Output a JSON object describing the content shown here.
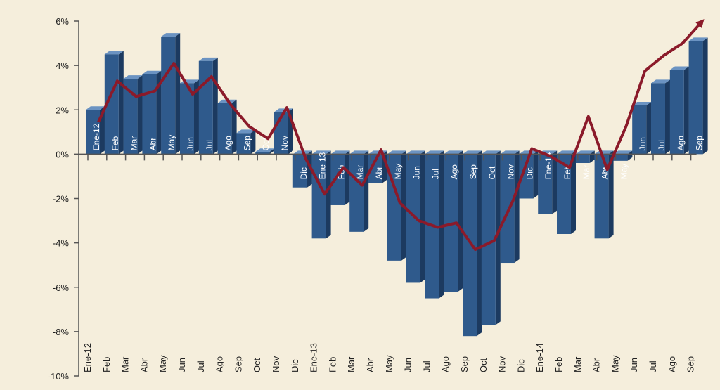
{
  "chart_data": {
    "type": "bar",
    "categories": [
      "Ene-12",
      "Feb",
      "Mar",
      "Abr",
      "May",
      "Jun",
      "Jul",
      "Ago",
      "Sep",
      "Oct",
      "Nov",
      "Dic",
      "Ene-13",
      "Feb",
      "Mar",
      "Abr",
      "May",
      "Jun",
      "Jul",
      "Ago",
      "Sep",
      "Oct",
      "Nov",
      "Dic",
      "Ene-14",
      "Feb",
      "Mar",
      "Abr",
      "May",
      "Jun",
      "Jul",
      "Ago",
      "Sep"
    ],
    "bars": {
      "color": "#2f5a8c",
      "values": [
        2.0,
        4.5,
        3.4,
        3.6,
        5.3,
        3.2,
        4.2,
        2.3,
        0.95,
        0.1,
        1.9,
        -1.5,
        -3.8,
        -2.3,
        -3.5,
        -1.3,
        -4.8,
        -5.8,
        -6.5,
        -6.2,
        -8.2,
        -7.7,
        -4.9,
        -2.0,
        -2.7,
        -3.6,
        -0.4,
        -3.8,
        -0.3,
        2.2,
        3.2,
        3.8,
        5.1
      ]
    },
    "line": {
      "color": "#8b1a2a",
      "values": [
        1.45,
        3.3,
        2.6,
        2.85,
        4.1,
        2.7,
        3.5,
        2.25,
        1.25,
        0.7,
        2.1,
        -0.2,
        -1.8,
        -0.6,
        -1.4,
        0.2,
        -2.2,
        -3.0,
        -3.3,
        -3.1,
        -4.3,
        -3.9,
        -2.1,
        0.25,
        -0.1,
        -0.6,
        1.7,
        -0.7,
        1.25,
        3.75,
        4.45,
        5.0,
        5.95
      ]
    },
    "ylim": [
      -10,
      6
    ],
    "yticks": [
      {
        "value": 6,
        "label": "6%"
      },
      {
        "value": 4,
        "label": "4%"
      },
      {
        "value": 2,
        "label": "2%"
      },
      {
        "value": 0,
        "label": "0%"
      },
      {
        "value": -2,
        "label": "-2%"
      },
      {
        "value": -4,
        "label": "-4%"
      },
      {
        "value": -6,
        "label": "-6%"
      },
      {
        "value": -8,
        "label": "-8%"
      },
      {
        "value": -10,
        "label": "-10%"
      }
    ]
  }
}
